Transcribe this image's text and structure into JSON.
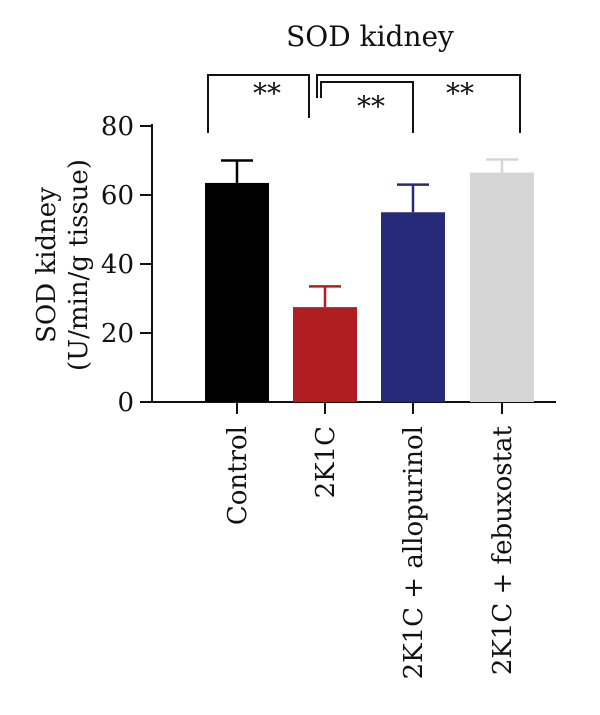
{
  "chart_data": {
    "type": "bar",
    "title": "SOD kidney",
    "ylabel_line1": "SOD kidney",
    "ylabel_line2": "(U/min/g tissue)",
    "xlabel": "",
    "ylim": [
      0,
      80
    ],
    "yticks": [
      0,
      20,
      40,
      60,
      80
    ],
    "grid": false,
    "legend": "none",
    "categories": [
      "Control",
      "2K1C",
      "2K1C + allopurinol",
      "2K1C + febuxostat"
    ],
    "values": [
      63.5,
      27.5,
      55,
      66.5
    ],
    "errors": [
      6.5,
      6,
      8,
      3.8
    ],
    "colors": [
      "#000000",
      "#b01e22",
      "#262a78",
      "#d6d6d6"
    ],
    "significance": [
      {
        "from": 0,
        "to": 1,
        "label": "**"
      },
      {
        "from": 1,
        "to": 2,
        "label": "**"
      },
      {
        "from": 1,
        "to": 3,
        "label": "**"
      }
    ]
  }
}
